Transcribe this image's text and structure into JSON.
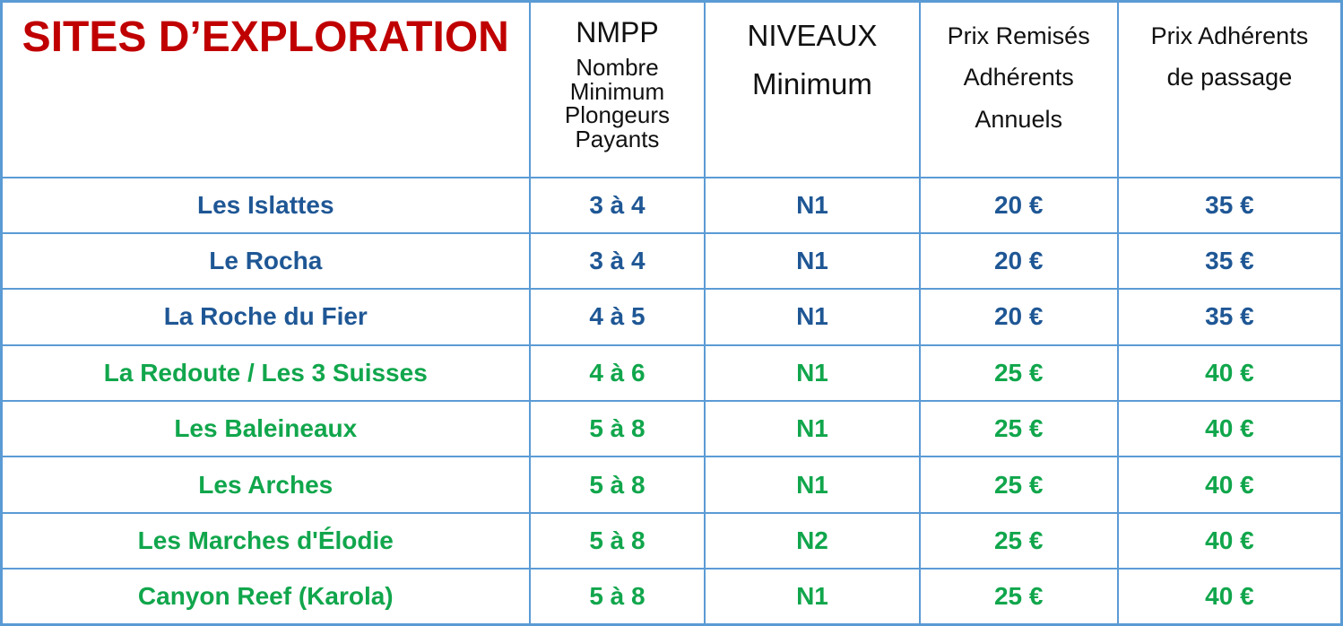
{
  "colors": {
    "border_blue": "#5B9BD5",
    "title_red": "#C00000",
    "header_text": "#111111",
    "row_blue_text": "#1F5795",
    "row_green_text": "#11A64C",
    "background": "#FFFFFF"
  },
  "table": {
    "title": "SITES D’EXPLORATION",
    "headers": {
      "nmpp": {
        "main": "NMPP",
        "sub_lines": [
          "Nombre",
          "Minimum",
          "Plongeurs",
          "Payants"
        ]
      },
      "niveaux": {
        "main": "NIVEAUX",
        "sub": "Minimum"
      },
      "prix_remises": {
        "lines": [
          "Prix Remisés",
          "Adhérents",
          "Annuels"
        ]
      },
      "prix_passage": {
        "lines": [
          "Prix Adhérents",
          "de passage"
        ]
      }
    },
    "rows": [
      {
        "site": "Les Islattes",
        "nmpp": "3 à 4",
        "niveau": "N1",
        "prix_remise": "20 €",
        "prix_passage": "35 €",
        "color_group": "blue"
      },
      {
        "site": "Le Rocha",
        "nmpp": "3 à 4",
        "niveau": "N1",
        "prix_remise": "20 €",
        "prix_passage": "35 €",
        "color_group": "blue"
      },
      {
        "site": "La Roche du Fier",
        "nmpp": "4 à 5",
        "niveau": "N1",
        "prix_remise": "20 €",
        "prix_passage": "35 €",
        "color_group": "blue"
      },
      {
        "site": "La Redoute / Les 3 Suisses",
        "nmpp": "4 à 6",
        "niveau": "N1",
        "prix_remise": "25 €",
        "prix_passage": "40 €",
        "color_group": "green"
      },
      {
        "site": "Les Baleineaux",
        "nmpp": "5 à 8",
        "niveau": "N1",
        "prix_remise": "25 €",
        "prix_passage": "40 €",
        "color_group": "green"
      },
      {
        "site": "Les Arches",
        "nmpp": "5 à 8",
        "niveau": "N1",
        "prix_remise": "25 €",
        "prix_passage": "40 €",
        "color_group": "green"
      },
      {
        "site": "Les Marches d'Élodie",
        "nmpp": "5 à 8",
        "niveau": "N2",
        "prix_remise": "25 €",
        "prix_passage": "40 €",
        "color_group": "green"
      },
      {
        "site": "Canyon Reef (Karola)",
        "nmpp": "5 à 8",
        "niveau": "N1",
        "prix_remise": "25 €",
        "prix_passage": "40 €",
        "color_group": "green"
      }
    ]
  }
}
